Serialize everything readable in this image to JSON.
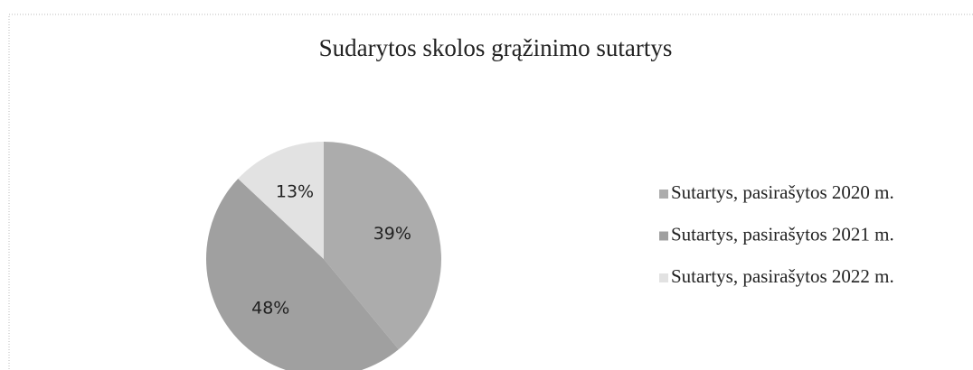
{
  "chart_data": {
    "type": "pie",
    "title": "Sudarytos skolos grąžinimo sutartys",
    "categories": [
      "Sutartys, pasirašytos 2020 m.",
      "Sutartys, pasirašytos 2021 m.",
      "Sutartys, pasirašytos 2022 m."
    ],
    "values": [
      39,
      48,
      13
    ],
    "value_labels": [
      "39%",
      "48%",
      "13%"
    ],
    "colors": [
      "#acacac",
      "#a0a0a0",
      "#e2e2e2"
    ],
    "legend": "right"
  }
}
